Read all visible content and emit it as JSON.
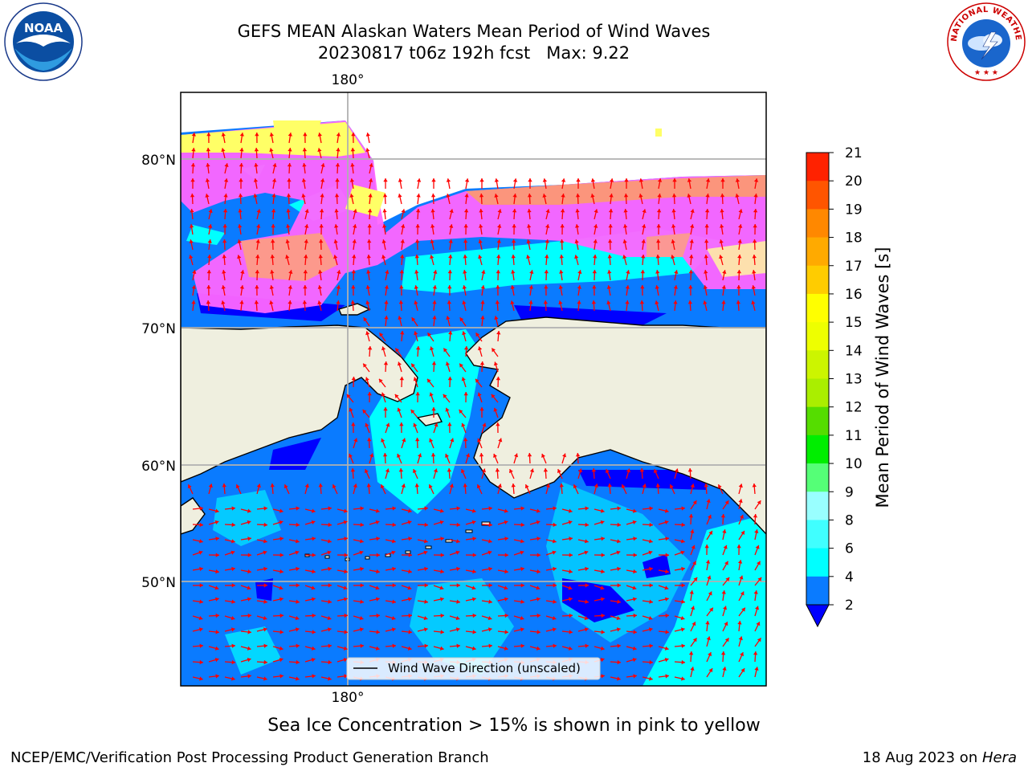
{
  "title": {
    "line1": "GEFS MEAN Alaskan Waters Mean Period of Wind Waves",
    "line2": "20230817 t06z 192h fcst   Max: 9.22"
  },
  "logos": {
    "left_text": "NOAA",
    "right_text": "NATIONAL WEATHER SERVICE"
  },
  "map": {
    "lon_label_top": "180°",
    "lon_label_bottom": "180°",
    "lat_labels": [
      "80°N",
      "70°N",
      "60°N",
      "50°N"
    ],
    "legend": "Wind Wave Direction (unscaled)"
  },
  "colorbar": {
    "label": "Mean Period of Wind Waves [s]",
    "ticks": [
      "21",
      "20",
      "19",
      "18",
      "17",
      "16",
      "15",
      "14",
      "13",
      "12",
      "11",
      "10",
      "9",
      "8",
      "6",
      "4",
      "2"
    ],
    "colors": {
      "2": "#0a7bff",
      "4": "#00ffff",
      "6": "#40ffff",
      "8": "#99ffff",
      "9": "#55ff77",
      "10": "#00ee00",
      "11": "#55dd00",
      "12": "#aaee00",
      "13": "#ccf500",
      "14": "#eeff00",
      "15": "#ffff00",
      "16": "#ffcc00",
      "17": "#ffaa00",
      "18": "#ff8800",
      "19": "#ff5500",
      "20": "#ff2200",
      "21": "#ff0000",
      "below": "#0000ff"
    }
  },
  "colors": {
    "ocean_low": "#0a7bff",
    "ocean_deep": "#0000ff",
    "ocean_cyan": "#00ffff",
    "land": "#efefdf",
    "ice_pink": "#ff66ff",
    "ice_yellow": "#ffff66",
    "arrow": "#ff0000"
  },
  "footer": {
    "ice_note": "Sea Ice Concentration > 15% is shown in pink to yellow",
    "left": "NCEP/EMC/Verification Post Processing Product Generation Branch",
    "right_date": "18 Aug 2023 on ",
    "right_host": "Hera"
  }
}
